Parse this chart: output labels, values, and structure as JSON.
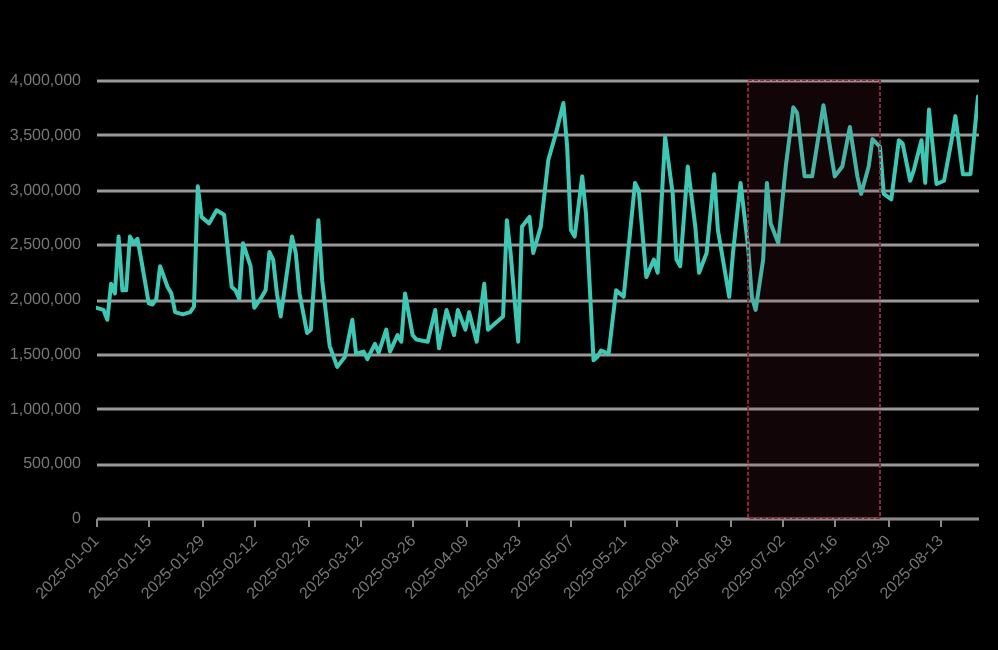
{
  "chart_data": {
    "type": "line",
    "x": [
      "2025-01-01",
      "2025-01-03",
      "2025-01-04",
      "2025-01-05",
      "2025-01-06",
      "2025-01-07",
      "2025-01-08",
      "2025-01-09",
      "2025-01-10",
      "2025-01-11",
      "2025-01-12",
      "2025-01-13",
      "2025-01-15",
      "2025-01-16",
      "2025-01-17",
      "2025-01-18",
      "2025-01-20",
      "2025-01-21",
      "2025-01-22",
      "2025-01-24",
      "2025-01-26",
      "2025-01-27",
      "2025-01-28",
      "2025-01-29",
      "2025-01-31",
      "2025-02-02",
      "2025-02-04",
      "2025-02-06",
      "2025-02-07",
      "2025-02-08",
      "2025-02-09",
      "2025-02-11",
      "2025-02-12",
      "2025-02-14",
      "2025-02-15",
      "2025-02-16",
      "2025-02-17",
      "2025-02-18",
      "2025-02-19",
      "2025-02-20",
      "2025-02-22",
      "2025-02-23",
      "2025-02-24",
      "2025-02-26",
      "2025-02-27",
      "2025-03-01",
      "2025-03-02",
      "2025-03-04",
      "2025-03-06",
      "2025-03-08",
      "2025-03-10",
      "2025-03-11",
      "2025-03-13",
      "2025-03-14",
      "2025-03-16",
      "2025-03-17",
      "2025-03-19",
      "2025-03-20",
      "2025-03-22",
      "2025-03-23",
      "2025-03-24",
      "2025-03-26",
      "2025-03-27",
      "2025-03-30",
      "2025-04-01",
      "2025-04-02",
      "2025-04-04",
      "2025-04-06",
      "2025-04-07",
      "2025-04-09",
      "2025-04-10",
      "2025-04-12",
      "2025-04-14",
      "2025-04-15",
      "2025-04-17",
      "2025-04-19",
      "2025-04-20",
      "2025-04-21",
      "2025-04-23",
      "2025-04-24",
      "2025-04-26",
      "2025-04-27",
      "2025-04-29",
      "2025-05-01",
      "2025-05-03",
      "2025-05-05",
      "2025-05-06",
      "2025-05-07",
      "2025-05-08",
      "2025-05-10",
      "2025-05-11",
      "2025-05-13",
      "2025-05-14",
      "2025-05-15",
      "2025-05-17",
      "2025-05-19",
      "2025-05-21",
      "2025-05-24",
      "2025-05-25",
      "2025-05-27",
      "2025-05-29",
      "2025-05-30",
      "2025-06-01",
      "2025-06-03",
      "2025-06-04",
      "2025-06-05",
      "2025-06-07",
      "2025-06-09",
      "2025-06-10",
      "2025-06-12",
      "2025-06-14",
      "2025-06-15",
      "2025-06-18",
      "2025-06-19",
      "2025-06-21",
      "2025-06-23",
      "2025-06-24",
      "2025-06-25",
      "2025-06-27",
      "2025-06-28",
      "2025-06-29",
      "2025-07-01",
      "2025-07-03",
      "2025-07-05",
      "2025-07-06",
      "2025-07-08",
      "2025-07-10",
      "2025-07-13",
      "2025-07-15",
      "2025-07-16",
      "2025-07-18",
      "2025-07-20",
      "2025-07-22",
      "2025-07-23",
      "2025-07-25",
      "2025-07-26",
      "2025-07-28",
      "2025-07-29",
      "2025-07-31",
      "2025-08-02",
      "2025-08-03",
      "2025-08-05",
      "2025-08-06",
      "2025-08-08",
      "2025-08-09",
      "2025-08-10",
      "2025-08-12",
      "2025-08-14",
      "2025-08-16",
      "2025-08-17",
      "2025-08-19",
      "2025-08-21",
      "2025-08-23"
    ],
    "series": [
      {
        "color": "#3cc8b4",
        "values": [
          1920000,
          1900000,
          1810000,
          2140000,
          2050000,
          2570000,
          2080000,
          2080000,
          2570000,
          2510000,
          2550000,
          2360000,
          1960000,
          1950000,
          2000000,
          2300000,
          2110000,
          2050000,
          1880000,
          1860000,
          1880000,
          1930000,
          3030000,
          2750000,
          2690000,
          2810000,
          2770000,
          2110000,
          2080000,
          2000000,
          2510000,
          2300000,
          1920000,
          2020000,
          2080000,
          2430000,
          2360000,
          2050000,
          1840000,
          2080000,
          2570000,
          2420000,
          2050000,
          1690000,
          1720000,
          2720000,
          2170000,
          1570000,
          1380000,
          1470000,
          1810000,
          1500000,
          1520000,
          1450000,
          1590000,
          1510000,
          1720000,
          1520000,
          1670000,
          1610000,
          2050000,
          1670000,
          1630000,
          1610000,
          1900000,
          1550000,
          1900000,
          1670000,
          1900000,
          1720000,
          1880000,
          1610000,
          2140000,
          1720000,
          1780000,
          1840000,
          2720000,
          2420000,
          1610000,
          2660000,
          2750000,
          2420000,
          2660000,
          3270000,
          3510000,
          3790000,
          3390000,
          2630000,
          2570000,
          3120000,
          2780000,
          1440000,
          1470000,
          1530000,
          1500000,
          2080000,
          2020000,
          3060000,
          2990000,
          2200000,
          2360000,
          2240000,
          3480000,
          2960000,
          2360000,
          2300000,
          3210000,
          2660000,
          2240000,
          2420000,
          3140000,
          2630000,
          2020000,
          2420000,
          3060000,
          2480000,
          2020000,
          1900000,
          2360000,
          3060000,
          2690000,
          2510000,
          3210000,
          3750000,
          3700000,
          3120000,
          3120000,
          3770000,
          3330000,
          3120000,
          3210000,
          3570000,
          3120000,
          2960000,
          3210000,
          3460000,
          3390000,
          2960000,
          2910000,
          3450000,
          3420000,
          3080000,
          3180000,
          3450000,
          3060000,
          3730000,
          3050000,
          3080000,
          3450000,
          3670000,
          3140000,
          3140000,
          3850000
        ]
      }
    ],
    "xlim": [
      "2025-01-01",
      "2025-08-23"
    ],
    "xticks": [
      "2025-01-01",
      "2025-01-15",
      "2025-01-29",
      "2025-02-12",
      "2025-02-26",
      "2025-03-12",
      "2025-03-26",
      "2025-04-09",
      "2025-04-23",
      "2025-05-07",
      "2025-05-21",
      "2025-06-04",
      "2025-06-18",
      "2025-07-02",
      "2025-07-16",
      "2025-07-30",
      "2025-08-13"
    ],
    "ylim": [
      0,
      4000000
    ],
    "yticks": [
      {
        "value": 0,
        "label": "0"
      },
      {
        "value": 500000,
        "label": "500,000"
      },
      {
        "value": 1000000,
        "label": "1,000,000"
      },
      {
        "value": 1500000,
        "label": "1,500,000"
      },
      {
        "value": 2000000,
        "label": "2,000,000"
      },
      {
        "value": 2500000,
        "label": "2,500,000"
      },
      {
        "value": 3000000,
        "label": "3,000,000"
      },
      {
        "value": 3500000,
        "label": "3,500,000"
      },
      {
        "value": 4000000,
        "label": "4,000,000"
      }
    ],
    "grid": "y",
    "bands": [
      {
        "axis": "x",
        "from": "2025-06-23",
        "to": "2025-07-28",
        "color": "#8b2a3a"
      }
    ]
  }
}
